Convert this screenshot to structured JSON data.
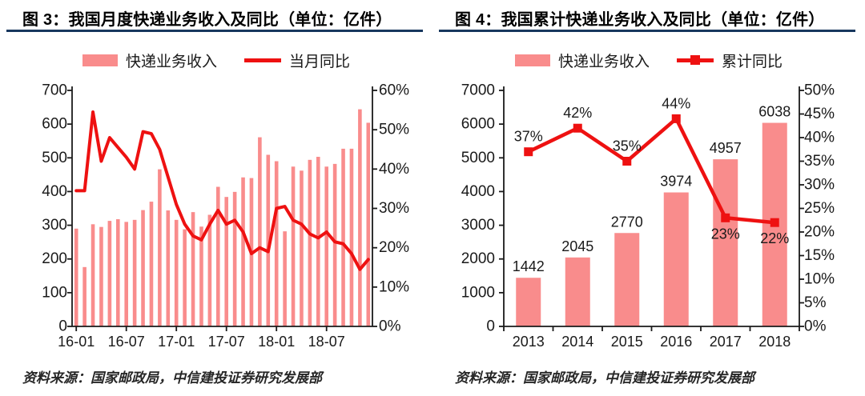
{
  "colors": {
    "bar": "#F98C8C",
    "line": "#EE1111",
    "title_rule": "#17375E",
    "axis": "#1a1a1a",
    "text": "#1a1a1a"
  },
  "panels": [
    {
      "title": "图 3：我国月度快递业务收入及同比（单位：亿件）",
      "source": "资料来源：国家邮政局，中信建投证券研究发展部"
    },
    {
      "title": "图 4：我国累计快递业务收入及同比（单位：亿件）",
      "source": "资料来源：国家邮政局，中信建投证券研究发展部"
    }
  ],
  "chart_data": [
    {
      "type": "bar+line",
      "title": "我国月度快递业务收入及同比",
      "unit": "亿件",
      "x": [
        "16-01",
        "16-02",
        "16-03",
        "16-04",
        "16-05",
        "16-06",
        "16-07",
        "16-08",
        "16-09",
        "16-10",
        "16-11",
        "16-12",
        "17-01",
        "17-02",
        "17-03",
        "17-04",
        "17-05",
        "17-06",
        "17-07",
        "17-08",
        "17-09",
        "17-10",
        "17-11",
        "17-12",
        "18-01",
        "18-02",
        "18-03",
        "18-04",
        "18-05",
        "18-06",
        "18-07",
        "18-08",
        "18-09",
        "18-10",
        "18-11",
        "18-12"
      ],
      "x_axis_ticks": [
        "16-01",
        "16-07",
        "17-01",
        "17-07",
        "18-01",
        "18-07"
      ],
      "series": [
        {
          "name": "快递业务收入",
          "type": "bar",
          "axis": "left",
          "values": [
            290,
            176,
            303,
            295,
            313,
            318,
            310,
            316,
            345,
            370,
            466,
            344,
            316,
            288,
            339,
            296,
            331,
            414,
            384,
            399,
            442,
            440,
            561,
            509,
            490,
            282,
            474,
            462,
            494,
            503,
            474,
            482,
            527,
            527,
            644,
            604
          ]
        },
        {
          "name": "当月同比",
          "type": "line",
          "axis": "right",
          "unit": "%",
          "values": [
            34.5,
            34.5,
            54.5,
            42,
            48,
            45.5,
            43,
            40,
            49.5,
            49,
            45,
            38,
            31,
            26,
            23,
            22,
            26,
            29.5,
            26,
            27,
            24,
            18.5,
            20,
            19,
            30,
            30.5,
            27,
            26,
            23.5,
            22.5,
            24,
            21.5,
            21,
            18.5,
            14.5,
            17
          ]
        }
      ],
      "left_axis": {
        "min": 0,
        "max": 700,
        "step": 100
      },
      "right_axis": {
        "min": 0,
        "max": 60,
        "step": 10,
        "unit": "%"
      },
      "legend_position": "top",
      "grid": false
    },
    {
      "type": "bar+line",
      "title": "我国累计快递业务收入及同比",
      "unit": "亿件",
      "x": [
        "2013",
        "2014",
        "2015",
        "2016",
        "2017",
        "2018"
      ],
      "series": [
        {
          "name": "快递业务收入",
          "type": "bar",
          "axis": "left",
          "values": [
            1442,
            2045,
            2770,
            3974,
            4957,
            6038
          ],
          "labels": [
            "1442",
            "2045",
            "2770",
            "3974",
            "4957",
            "6038"
          ]
        },
        {
          "name": "累计同比",
          "type": "line",
          "axis": "right",
          "unit": "%",
          "values": [
            37,
            42,
            35,
            44,
            23,
            22
          ],
          "labels": [
            "37%",
            "42%",
            "35%",
            "44%",
            "23%",
            "22%"
          ],
          "label_pos": [
            "above",
            "above",
            "above",
            "above",
            "below",
            "below"
          ]
        }
      ],
      "left_axis": {
        "min": 0,
        "max": 7000,
        "step": 1000
      },
      "right_axis": {
        "min": 0,
        "max": 50,
        "step": 5,
        "unit": "%"
      },
      "legend_position": "top",
      "grid": false
    }
  ]
}
